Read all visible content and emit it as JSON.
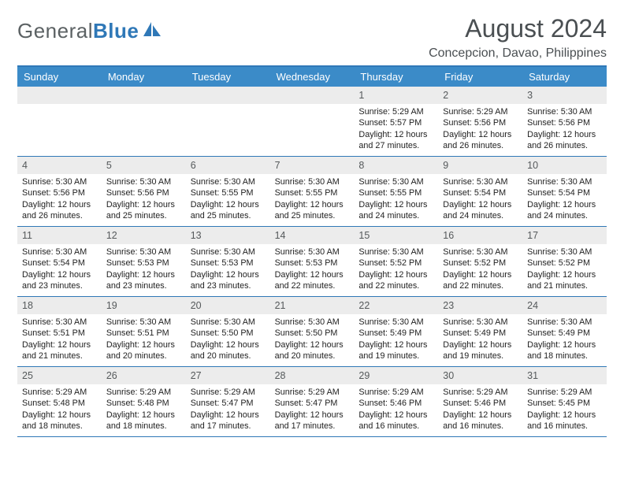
{
  "brand": {
    "part1": "General",
    "part2": "Blue"
  },
  "title": "August 2024",
  "location": "Concepcion, Davao, Philippines",
  "colors": {
    "header_bg": "#3b8bc8",
    "header_text": "#ffffff",
    "rule": "#2f78b7",
    "daynum_bg": "#ececec",
    "text": "#222222",
    "title_text": "#4a4f52",
    "brand_gray": "#5b6163",
    "brand_blue": "#2f78b7"
  },
  "day_headers": [
    "Sunday",
    "Monday",
    "Tuesday",
    "Wednesday",
    "Thursday",
    "Friday",
    "Saturday"
  ],
  "weeks": [
    [
      {
        "empty": true
      },
      {
        "empty": true
      },
      {
        "empty": true
      },
      {
        "empty": true
      },
      {
        "num": "1",
        "sunrise": "Sunrise: 5:29 AM",
        "sunset": "Sunset: 5:57 PM",
        "daylight": "Daylight: 12 hours and 27 minutes."
      },
      {
        "num": "2",
        "sunrise": "Sunrise: 5:29 AM",
        "sunset": "Sunset: 5:56 PM",
        "daylight": "Daylight: 12 hours and 26 minutes."
      },
      {
        "num": "3",
        "sunrise": "Sunrise: 5:30 AM",
        "sunset": "Sunset: 5:56 PM",
        "daylight": "Daylight: 12 hours and 26 minutes."
      }
    ],
    [
      {
        "num": "4",
        "sunrise": "Sunrise: 5:30 AM",
        "sunset": "Sunset: 5:56 PM",
        "daylight": "Daylight: 12 hours and 26 minutes."
      },
      {
        "num": "5",
        "sunrise": "Sunrise: 5:30 AM",
        "sunset": "Sunset: 5:56 PM",
        "daylight": "Daylight: 12 hours and 25 minutes."
      },
      {
        "num": "6",
        "sunrise": "Sunrise: 5:30 AM",
        "sunset": "Sunset: 5:55 PM",
        "daylight": "Daylight: 12 hours and 25 minutes."
      },
      {
        "num": "7",
        "sunrise": "Sunrise: 5:30 AM",
        "sunset": "Sunset: 5:55 PM",
        "daylight": "Daylight: 12 hours and 25 minutes."
      },
      {
        "num": "8",
        "sunrise": "Sunrise: 5:30 AM",
        "sunset": "Sunset: 5:55 PM",
        "daylight": "Daylight: 12 hours and 24 minutes."
      },
      {
        "num": "9",
        "sunrise": "Sunrise: 5:30 AM",
        "sunset": "Sunset: 5:54 PM",
        "daylight": "Daylight: 12 hours and 24 minutes."
      },
      {
        "num": "10",
        "sunrise": "Sunrise: 5:30 AM",
        "sunset": "Sunset: 5:54 PM",
        "daylight": "Daylight: 12 hours and 24 minutes."
      }
    ],
    [
      {
        "num": "11",
        "sunrise": "Sunrise: 5:30 AM",
        "sunset": "Sunset: 5:54 PM",
        "daylight": "Daylight: 12 hours and 23 minutes."
      },
      {
        "num": "12",
        "sunrise": "Sunrise: 5:30 AM",
        "sunset": "Sunset: 5:53 PM",
        "daylight": "Daylight: 12 hours and 23 minutes."
      },
      {
        "num": "13",
        "sunrise": "Sunrise: 5:30 AM",
        "sunset": "Sunset: 5:53 PM",
        "daylight": "Daylight: 12 hours and 23 minutes."
      },
      {
        "num": "14",
        "sunrise": "Sunrise: 5:30 AM",
        "sunset": "Sunset: 5:53 PM",
        "daylight": "Daylight: 12 hours and 22 minutes."
      },
      {
        "num": "15",
        "sunrise": "Sunrise: 5:30 AM",
        "sunset": "Sunset: 5:52 PM",
        "daylight": "Daylight: 12 hours and 22 minutes."
      },
      {
        "num": "16",
        "sunrise": "Sunrise: 5:30 AM",
        "sunset": "Sunset: 5:52 PM",
        "daylight": "Daylight: 12 hours and 22 minutes."
      },
      {
        "num": "17",
        "sunrise": "Sunrise: 5:30 AM",
        "sunset": "Sunset: 5:52 PM",
        "daylight": "Daylight: 12 hours and 21 minutes."
      }
    ],
    [
      {
        "num": "18",
        "sunrise": "Sunrise: 5:30 AM",
        "sunset": "Sunset: 5:51 PM",
        "daylight": "Daylight: 12 hours and 21 minutes."
      },
      {
        "num": "19",
        "sunrise": "Sunrise: 5:30 AM",
        "sunset": "Sunset: 5:51 PM",
        "daylight": "Daylight: 12 hours and 20 minutes."
      },
      {
        "num": "20",
        "sunrise": "Sunrise: 5:30 AM",
        "sunset": "Sunset: 5:50 PM",
        "daylight": "Daylight: 12 hours and 20 minutes."
      },
      {
        "num": "21",
        "sunrise": "Sunrise: 5:30 AM",
        "sunset": "Sunset: 5:50 PM",
        "daylight": "Daylight: 12 hours and 20 minutes."
      },
      {
        "num": "22",
        "sunrise": "Sunrise: 5:30 AM",
        "sunset": "Sunset: 5:49 PM",
        "daylight": "Daylight: 12 hours and 19 minutes."
      },
      {
        "num": "23",
        "sunrise": "Sunrise: 5:30 AM",
        "sunset": "Sunset: 5:49 PM",
        "daylight": "Daylight: 12 hours and 19 minutes."
      },
      {
        "num": "24",
        "sunrise": "Sunrise: 5:30 AM",
        "sunset": "Sunset: 5:49 PM",
        "daylight": "Daylight: 12 hours and 18 minutes."
      }
    ],
    [
      {
        "num": "25",
        "sunrise": "Sunrise: 5:29 AM",
        "sunset": "Sunset: 5:48 PM",
        "daylight": "Daylight: 12 hours and 18 minutes."
      },
      {
        "num": "26",
        "sunrise": "Sunrise: 5:29 AM",
        "sunset": "Sunset: 5:48 PM",
        "daylight": "Daylight: 12 hours and 18 minutes."
      },
      {
        "num": "27",
        "sunrise": "Sunrise: 5:29 AM",
        "sunset": "Sunset: 5:47 PM",
        "daylight": "Daylight: 12 hours and 17 minutes."
      },
      {
        "num": "28",
        "sunrise": "Sunrise: 5:29 AM",
        "sunset": "Sunset: 5:47 PM",
        "daylight": "Daylight: 12 hours and 17 minutes."
      },
      {
        "num": "29",
        "sunrise": "Sunrise: 5:29 AM",
        "sunset": "Sunset: 5:46 PM",
        "daylight": "Daylight: 12 hours and 16 minutes."
      },
      {
        "num": "30",
        "sunrise": "Sunrise: 5:29 AM",
        "sunset": "Sunset: 5:46 PM",
        "daylight": "Daylight: 12 hours and 16 minutes."
      },
      {
        "num": "31",
        "sunrise": "Sunrise: 5:29 AM",
        "sunset": "Sunset: 5:45 PM",
        "daylight": "Daylight: 12 hours and 16 minutes."
      }
    ]
  ]
}
